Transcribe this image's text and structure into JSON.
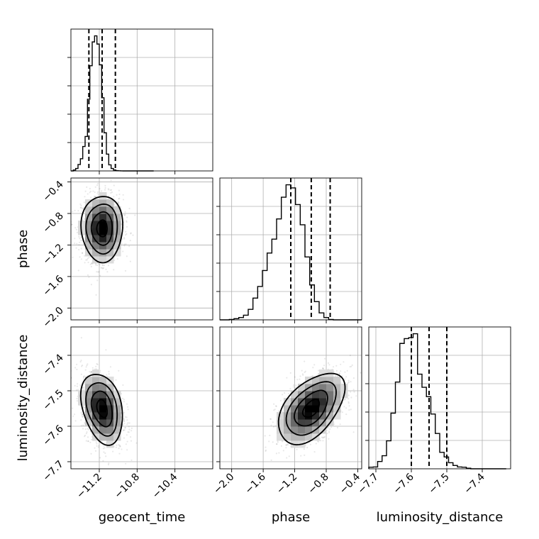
{
  "chart_data": {
    "type": "corner",
    "parameters": [
      {
        "name": "geocent_time",
        "label": "geocent_time",
        "range": [
          -11.5,
          -10.0
        ],
        "ticks": [
          -11.2,
          -10.8,
          -10.4
        ],
        "tick_labels": [
          "−11.2",
          "−10.8",
          "−10.4"
        ],
        "quantiles": [
          -11.31,
          -11.17,
          -11.03
        ],
        "mean": -11.17,
        "sd": 0.11
      },
      {
        "name": "phase",
        "label": "phase",
        "range": [
          -2.15,
          -0.35
        ],
        "ticks": [
          -2.0,
          -1.6,
          -1.2,
          -0.8,
          -0.4
        ],
        "tick_labels": [
          "−2.0",
          "−1.6",
          "−1.2",
          "−0.8",
          "−0.4"
        ],
        "quantiles": [
          -1.25,
          -0.99,
          -0.75
        ],
        "mean": -0.99,
        "sd": 0.21
      },
      {
        "name": "luminosity_distance",
        "label": "luminosity_distance",
        "range": [
          -7.72,
          -7.32
        ],
        "ticks": [
          -7.7,
          -7.6,
          -7.5,
          -7.4
        ],
        "tick_labels": [
          "−7.7",
          "−7.6",
          "−7.5",
          "−7.4"
        ],
        "quantiles": [
          -7.6,
          -7.55,
          -7.5
        ],
        "mean": -7.55,
        "sd": 0.05
      }
    ],
    "histograms": [
      {
        "param": "geocent_time",
        "bin_edges": [
          -11.5,
          -11.475,
          -11.45,
          -11.425,
          -11.4,
          -11.375,
          -11.35,
          -11.325,
          -11.3,
          -11.275,
          -11.25,
          -11.225,
          -11.2,
          -11.175,
          -11.15,
          -11.125,
          -11.1,
          -11.075,
          -11.05,
          -11.025,
          -11.0,
          -10.975,
          -10.95,
          -10.925,
          -10.9,
          -10.875,
          -10.85,
          -10.825,
          -10.8,
          -10.775,
          -10.75,
          -10.725,
          -10.7,
          -10.675,
          -10.65,
          -10.625
        ],
        "counts": [
          0,
          0.3,
          0.8,
          2.1,
          4.0,
          8.0,
          11.3,
          23.5,
          34.5,
          42.3,
          44.3,
          41.6,
          34.8,
          24.0,
          12.5,
          5.5,
          2.0,
          0.8,
          0.3,
          0.1,
          0.05,
          0.02,
          0,
          0,
          0,
          0,
          0,
          0,
          0,
          0,
          0,
          0,
          0,
          0,
          0
        ]
      },
      {
        "param": "phase",
        "bin_edges": [
          -2.15,
          -2.09,
          -2.03,
          -1.97,
          -1.91,
          -1.85,
          -1.79,
          -1.73,
          -1.67,
          -1.61,
          -1.55,
          -1.49,
          -1.43,
          -1.37,
          -1.31,
          -1.25,
          -1.19,
          -1.13,
          -1.07,
          -1.01,
          -0.95,
          -0.89,
          -0.83,
          -0.77,
          -0.71,
          -0.65,
          -0.59,
          -0.53,
          -0.47,
          -0.41,
          -0.35
        ],
        "counts": [
          0,
          0,
          0.1,
          0.3,
          0.6,
          1.2,
          2.7,
          5.6,
          8.6,
          12.7,
          17.2,
          20.8,
          26.0,
          31.6,
          34.8,
          34.0,
          29.7,
          24.5,
          16.2,
          9.0,
          4.7,
          1.8,
          0.6,
          0.1,
          0,
          0,
          0,
          0,
          0,
          0
        ]
      },
      {
        "param": "luminosity_distance",
        "bin_edges": [
          -7.72,
          -7.7075,
          -7.695,
          -7.6825,
          -7.67,
          -7.6575,
          -7.645,
          -7.6325,
          -7.62,
          -7.6075,
          -7.595,
          -7.5825,
          -7.57,
          -7.5575,
          -7.545,
          -7.5325,
          -7.52,
          -7.5075,
          -7.495,
          -7.4825,
          -7.47,
          -7.4575,
          -7.445,
          -7.4325,
          -7.42,
          -7.4075,
          -7.395,
          -7.3825,
          -7.37,
          -7.3575,
          -7.345,
          -7.3325
        ],
        "counts": [
          0.5,
          0.6,
          2.4,
          4.3,
          9.2,
          18.3,
          28.5,
          41.2,
          42.8,
          43.1,
          44.4,
          31.1,
          26.8,
          23.7,
          18.0,
          11.6,
          5.4,
          3.9,
          2.0,
          1.1,
          0.6,
          0.5,
          0.2,
          0,
          0,
          0,
          0,
          0,
          0,
          0,
          0
        ]
      }
    ],
    "pairs": [
      {
        "x": "geocent_time",
        "y": "phase",
        "correlation": 0.0
      },
      {
        "x": "geocent_time",
        "y": "luminosity_distance",
        "correlation": -0.3
      },
      {
        "x": "phase",
        "y": "luminosity_distance",
        "correlation": 0.5
      }
    ],
    "contour_levels": [
      0.5,
      1.0,
      1.5,
      2.0
    ],
    "grid": true,
    "title": ""
  }
}
